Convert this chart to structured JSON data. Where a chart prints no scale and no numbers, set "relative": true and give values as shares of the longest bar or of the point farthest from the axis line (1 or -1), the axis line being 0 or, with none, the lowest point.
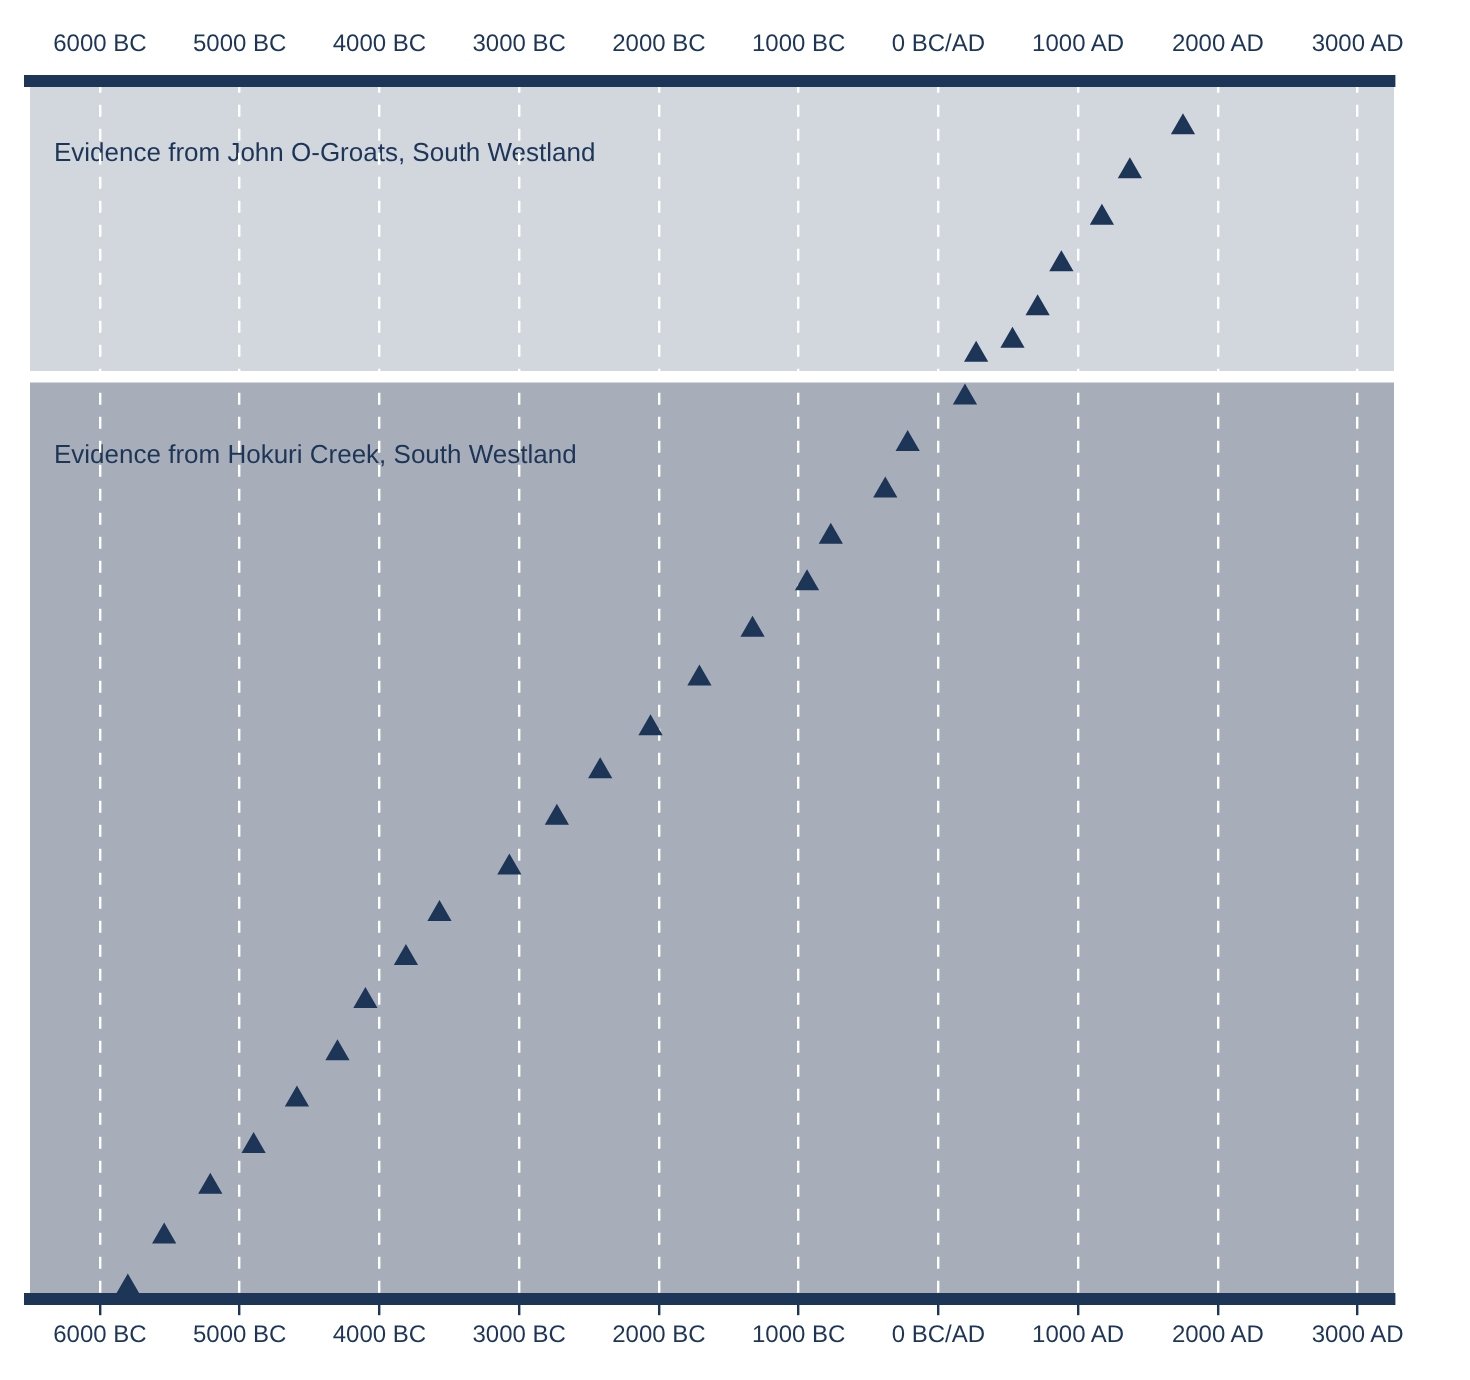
{
  "chart_data": {
    "type": "scatter",
    "relative": true,
    "marker": "triangle",
    "color": "#1d3557",
    "grid": "x",
    "x": [
      -5800,
      -5540,
      -5210,
      -4900,
      -4590,
      -4300,
      -4100,
      -3810,
      -3570,
      -3070,
      -2730,
      -2420,
      -2060,
      -1710,
      -1330,
      -940,
      -770,
      -380,
      -220,
      190,
      270,
      530,
      710,
      880,
      1170,
      1370,
      1750
    ],
    "values": [
      0,
      0.044,
      0.087,
      0.122,
      0.162,
      0.202,
      0.247,
      0.284,
      0.322,
      0.362,
      0.405,
      0.445,
      0.482,
      0.525,
      0.567,
      0.607,
      0.647,
      0.687,
      0.727,
      0.767,
      0.804,
      0.816,
      0.844,
      0.882,
      0.922,
      0.962,
      1
    ],
    "xlim": [
      -6500,
      3260
    ],
    "xticks": [
      {
        "value": -6000,
        "label": "6000 BC"
      },
      {
        "value": -5000,
        "label": "5000 BC"
      },
      {
        "value": -4000,
        "label": "4000 BC"
      },
      {
        "value": -3000,
        "label": "3000 BC"
      },
      {
        "value": -2000,
        "label": "2000 BC"
      },
      {
        "value": -1000,
        "label": "1000 BC"
      },
      {
        "value": 0,
        "label": "0 BC/AD"
      },
      {
        "value": 1000,
        "label": "1000 AD"
      },
      {
        "value": 2000,
        "label": "2000 AD"
      },
      {
        "value": 3000,
        "label": "3000 AD"
      }
    ],
    "x2lim": [
      -6500,
      3260
    ],
    "x2ticks": [
      {
        "value": -6000,
        "label": "6000 BC"
      },
      {
        "value": -5000,
        "label": "5000 BC"
      },
      {
        "value": -4000,
        "label": "4000 BC"
      },
      {
        "value": -3000,
        "label": "3000 BC"
      },
      {
        "value": -2000,
        "label": "2000 BC"
      },
      {
        "value": -1000,
        "label": "1000 BC"
      },
      {
        "value": 0,
        "label": "0 BC/AD"
      },
      {
        "value": 1000,
        "label": "1000 AD"
      },
      {
        "value": 2000,
        "label": "2000 AD"
      },
      {
        "value": 3000,
        "label": "3000 AD"
      }
    ],
    "bands": [
      {
        "axis": "y",
        "from": 0.79,
        "to": 1.04,
        "label": "Evidence from John O-Groats, South Westland",
        "color": "#d2d7de"
      },
      {
        "axis": "y",
        "from": -0.01,
        "to": 0.78,
        "label": "Evidence from Hokuri Creek, South Westland",
        "color": "#a7aeb9"
      }
    ]
  }
}
